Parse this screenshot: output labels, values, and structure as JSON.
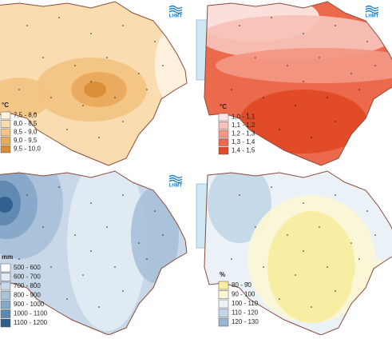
{
  "panels": [
    {
      "logo": "LHMT",
      "legend": {
        "title": "°C",
        "items": [
          {
            "label": "7,5 - 8,0",
            "color": "#fdf1df"
          },
          {
            "label": "8,0 - 8,5",
            "color": "#f9dcaf"
          },
          {
            "label": "8,5 - 9,0",
            "color": "#f3c484"
          },
          {
            "label": "9,0 - 9,5",
            "color": "#e9aa5c"
          },
          {
            "label": "9,5 - 10,0",
            "color": "#d98c36"
          }
        ]
      }
    },
    {
      "logo": "LHMT",
      "legend": {
        "title": "°C",
        "items": [
          {
            "label": "1,0 - 1,1",
            "color": "#fce6e3"
          },
          {
            "label": "1,1 - 1,2",
            "color": "#f8c1b6"
          },
          {
            "label": "1,2 - 1,3",
            "color": "#f39783"
          },
          {
            "label": "1,3 - 1,4",
            "color": "#ec6a4c"
          },
          {
            "label": "1,4 - 1,5",
            "color": "#e14a26"
          }
        ]
      }
    },
    {
      "logo": "LHMT",
      "legend": {
        "title": "mm",
        "items": [
          {
            "label": "500 - 600",
            "color": "#ffffff"
          },
          {
            "label": "600 - 700",
            "color": "#e2ebf3"
          },
          {
            "label": "700 - 800",
            "color": "#c8d8e8"
          },
          {
            "label": "800 - 900",
            "color": "#a9c2da"
          },
          {
            "label": "900 - 1000",
            "color": "#86a8c8"
          },
          {
            "label": "1000 - 1100",
            "color": "#5f87b0"
          },
          {
            "label": "1100 - 1200",
            "color": "#2f5d8c"
          }
        ]
      }
    },
    {
      "legend": {
        "title": "%",
        "items": [
          {
            "label": "80 - 90",
            "color": "#f8eda0"
          },
          {
            "label": "90 - 100",
            "color": "#fbf7d6"
          },
          {
            "label": "100 - 110",
            "color": "#eaf2f8"
          },
          {
            "label": "110 - 120",
            "color": "#c3d7e8"
          },
          {
            "label": "120 - 130",
            "color": "#98b6d2"
          }
        ]
      }
    }
  ]
}
